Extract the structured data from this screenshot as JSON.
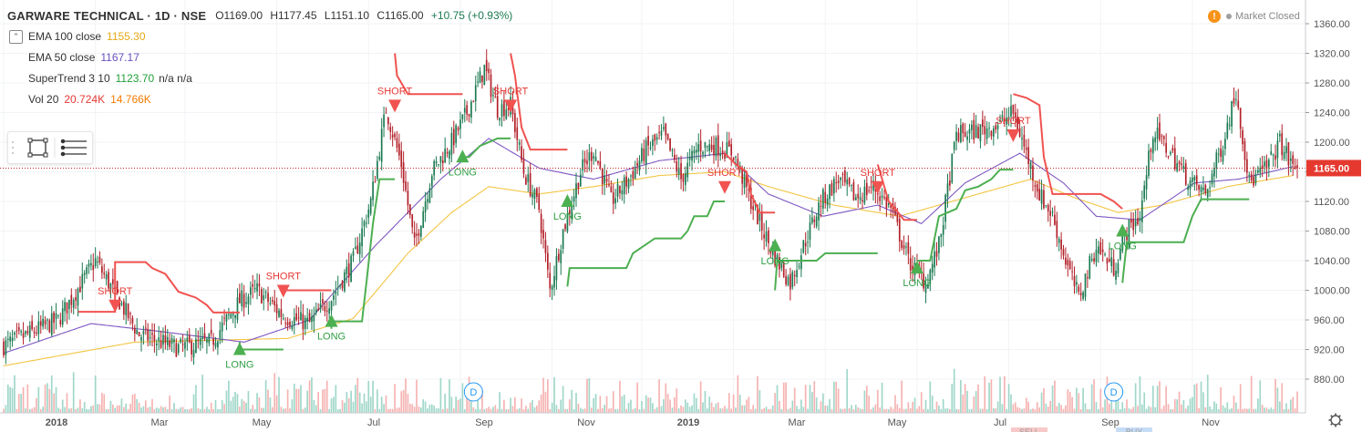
{
  "symbol": "GARWARE TECHNICAL · 1D · NSE",
  "ohlc": {
    "open": "O1169.00",
    "high": "H1177.45",
    "low": "L1151.10",
    "close": "C1165.00",
    "change": "+10.75 (+0.93%)"
  },
  "indicators": [
    {
      "label": "EMA 100 close",
      "value": "1155.30",
      "color": "#e6a817"
    },
    {
      "label": "EMA 50 close",
      "value": "1167.17",
      "color": "#6a4fc0"
    },
    {
      "label": "SuperTrend 3 10",
      "value": "1123.70",
      "extra": "n/a n/a",
      "color": "#21a038"
    },
    {
      "label": "Vol 20",
      "value": "20.724K",
      "value2": "14.766K",
      "color": "#e53935",
      "color2": "#f57c00"
    }
  ],
  "market_status": {
    "icon": "warning-icon",
    "text": "Market Closed"
  },
  "last_price": "1165.00",
  "colors": {
    "up": "#1b7a52",
    "down": "#b32029",
    "st_up": "#4caf50",
    "st_down": "#f05350",
    "ema100": "#f4c542",
    "ema50": "#7e57c2"
  },
  "chart_data": {
    "type": "candlestick",
    "title": "GARWARE TECHNICAL · 1D · NSE",
    "y_axis": {
      "ticks": [
        1360,
        1320,
        1280,
        1240,
        1200,
        1160,
        1120,
        1080,
        1040,
        1000,
        960,
        920,
        880
      ],
      "range": [
        850,
        1370
      ]
    },
    "x_axis_labels": [
      "2018",
      "Mar",
      "May",
      "Jul",
      "Sep",
      "Nov",
      "2019",
      "Mar",
      "May",
      "Jul",
      "Sep",
      "Nov"
    ],
    "anchors": [
      {
        "d": 0,
        "p": 925
      },
      {
        "d": 25,
        "p": 960
      },
      {
        "d": 42,
        "p": 1040
      },
      {
        "d": 52,
        "p": 990
      },
      {
        "d": 62,
        "p": 940
      },
      {
        "d": 80,
        "p": 922
      },
      {
        "d": 95,
        "p": 930
      },
      {
        "d": 108,
        "p": 985
      },
      {
        "d": 116,
        "p": 1000
      },
      {
        "d": 128,
        "p": 965
      },
      {
        "d": 140,
        "p": 955
      },
      {
        "d": 150,
        "p": 990
      },
      {
        "d": 160,
        "p": 1040
      },
      {
        "d": 168,
        "p": 1120
      },
      {
        "d": 175,
        "p": 1245
      },
      {
        "d": 182,
        "p": 1170
      },
      {
        "d": 188,
        "p": 1060
      },
      {
        "d": 196,
        "p": 1160
      },
      {
        "d": 205,
        "p": 1200
      },
      {
        "d": 212,
        "p": 1240
      },
      {
        "d": 220,
        "p": 1300
      },
      {
        "d": 226,
        "p": 1245
      },
      {
        "d": 232,
        "p": 1250
      },
      {
        "d": 238,
        "p": 1160
      },
      {
        "d": 245,
        "p": 1110
      },
      {
        "d": 250,
        "p": 1000
      },
      {
        "d": 256,
        "p": 1080
      },
      {
        "d": 264,
        "p": 1160
      },
      {
        "d": 270,
        "p": 1190
      },
      {
        "d": 278,
        "p": 1120
      },
      {
        "d": 286,
        "p": 1150
      },
      {
        "d": 294,
        "p": 1190
      },
      {
        "d": 302,
        "p": 1210
      },
      {
        "d": 310,
        "p": 1150
      },
      {
        "d": 318,
        "p": 1195
      },
      {
        "d": 326,
        "p": 1195
      },
      {
        "d": 334,
        "p": 1185
      },
      {
        "d": 342,
        "p": 1120
      },
      {
        "d": 352,
        "p": 1050
      },
      {
        "d": 360,
        "p": 1010
      },
      {
        "d": 366,
        "p": 1060
      },
      {
        "d": 374,
        "p": 1120
      },
      {
        "d": 382,
        "p": 1150
      },
      {
        "d": 390,
        "p": 1125
      },
      {
        "d": 398,
        "p": 1140
      },
      {
        "d": 406,
        "p": 1110
      },
      {
        "d": 414,
        "p": 1040
      },
      {
        "d": 422,
        "p": 1010
      },
      {
        "d": 428,
        "p": 1060
      },
      {
        "d": 436,
        "p": 1210
      },
      {
        "d": 446,
        "p": 1215
      },
      {
        "d": 456,
        "p": 1225
      },
      {
        "d": 462,
        "p": 1240
      },
      {
        "d": 468,
        "p": 1185
      },
      {
        "d": 474,
        "p": 1130
      },
      {
        "d": 480,
        "p": 1100
      },
      {
        "d": 486,
        "p": 1040
      },
      {
        "d": 492,
        "p": 990
      },
      {
        "d": 500,
        "p": 1060
      },
      {
        "d": 508,
        "p": 1030
      },
      {
        "d": 514,
        "p": 1080
      },
      {
        "d": 520,
        "p": 1100
      },
      {
        "d": 526,
        "p": 1215
      },
      {
        "d": 534,
        "p": 1185
      },
      {
        "d": 542,
        "p": 1150
      },
      {
        "d": 550,
        "p": 1130
      },
      {
        "d": 558,
        "p": 1200
      },
      {
        "d": 564,
        "p": 1270
      },
      {
        "d": 570,
        "p": 1145
      },
      {
        "d": 578,
        "p": 1165
      },
      {
        "d": 584,
        "p": 1200
      },
      {
        "d": 590,
        "p": 1165
      }
    ],
    "ema100": [
      {
        "d": 0,
        "p": 898
      },
      {
        "d": 60,
        "p": 930
      },
      {
        "d": 130,
        "p": 935
      },
      {
        "d": 160,
        "p": 962
      },
      {
        "d": 185,
        "p": 1050
      },
      {
        "d": 205,
        "p": 1105
      },
      {
        "d": 222,
        "p": 1140
      },
      {
        "d": 245,
        "p": 1130
      },
      {
        "d": 270,
        "p": 1140
      },
      {
        "d": 300,
        "p": 1155
      },
      {
        "d": 330,
        "p": 1160
      },
      {
        "d": 350,
        "p": 1140
      },
      {
        "d": 380,
        "p": 1115
      },
      {
        "d": 410,
        "p": 1100
      },
      {
        "d": 440,
        "p": 1125
      },
      {
        "d": 470,
        "p": 1150
      },
      {
        "d": 490,
        "p": 1125
      },
      {
        "d": 510,
        "p": 1105
      },
      {
        "d": 530,
        "p": 1115
      },
      {
        "d": 560,
        "p": 1140
      },
      {
        "d": 590,
        "p": 1155
      }
    ],
    "ema50": [
      {
        "d": 0,
        "p": 915
      },
      {
        "d": 40,
        "p": 955
      },
      {
        "d": 70,
        "p": 945
      },
      {
        "d": 110,
        "p": 930
      },
      {
        "d": 140,
        "p": 960
      },
      {
        "d": 170,
        "p": 1060
      },
      {
        "d": 200,
        "p": 1150
      },
      {
        "d": 222,
        "p": 1205
      },
      {
        "d": 245,
        "p": 1165
      },
      {
        "d": 270,
        "p": 1150
      },
      {
        "d": 300,
        "p": 1175
      },
      {
        "d": 330,
        "p": 1185
      },
      {
        "d": 350,
        "p": 1130
      },
      {
        "d": 375,
        "p": 1100
      },
      {
        "d": 400,
        "p": 1115
      },
      {
        "d": 420,
        "p": 1090
      },
      {
        "d": 440,
        "p": 1145
      },
      {
        "d": 465,
        "p": 1185
      },
      {
        "d": 485,
        "p": 1145
      },
      {
        "d": 500,
        "p": 1100
      },
      {
        "d": 520,
        "p": 1095
      },
      {
        "d": 545,
        "p": 1145
      },
      {
        "d": 565,
        "p": 1150
      },
      {
        "d": 590,
        "p": 1167
      }
    ],
    "supertrend": [
      {
        "type": "down",
        "points": [
          {
            "d": 34,
            "p": 971
          },
          {
            "d": 51,
            "p": 971
          },
          {
            "d": 51,
            "p": 1038
          },
          {
            "d": 65,
            "p": 1038
          },
          {
            "d": 68,
            "p": 1030
          },
          {
            "d": 74,
            "p": 1022
          },
          {
            "d": 80,
            "p": 998
          },
          {
            "d": 88,
            "p": 990
          },
          {
            "d": 93,
            "p": 980
          },
          {
            "d": 96,
            "p": 970
          },
          {
            "d": 108,
            "p": 970
          }
        ]
      },
      {
        "type": "up",
        "points": [
          {
            "d": 108,
            "p": 930
          },
          {
            "d": 108,
            "p": 920
          },
          {
            "d": 128,
            "p": 920
          }
        ]
      },
      {
        "type": "down",
        "points": [
          {
            "d": 128,
            "p": 1000
          },
          {
            "d": 150,
            "p": 1000
          }
        ]
      },
      {
        "type": "up",
        "points": [
          {
            "d": 150,
            "p": 948
          },
          {
            "d": 150,
            "p": 958
          },
          {
            "d": 164,
            "p": 958
          },
          {
            "d": 166,
            "p": 1010
          },
          {
            "d": 169,
            "p": 1090
          },
          {
            "d": 172,
            "p": 1150
          },
          {
            "d": 179,
            "p": 1150
          }
        ]
      },
      {
        "type": "down",
        "points": [
          {
            "d": 179,
            "p": 1320
          },
          {
            "d": 180,
            "p": 1290
          },
          {
            "d": 185,
            "p": 1265
          },
          {
            "d": 208,
            "p": 1265
          },
          {
            "d": 210,
            "p": 1265
          }
        ]
      },
      {
        "type": "up",
        "points": [
          {
            "d": 210,
            "p": 1180
          },
          {
            "d": 213,
            "p": 1180
          },
          {
            "d": 218,
            "p": 1195
          },
          {
            "d": 226,
            "p": 1205
          },
          {
            "d": 232,
            "p": 1205
          }
        ]
      },
      {
        "type": "down",
        "points": [
          {
            "d": 232,
            "p": 1320
          },
          {
            "d": 234,
            "p": 1290
          },
          {
            "d": 237,
            "p": 1220
          },
          {
            "d": 241,
            "p": 1190
          },
          {
            "d": 258,
            "p": 1190
          }
        ]
      },
      {
        "type": "up",
        "points": [
          {
            "d": 258,
            "p": 1005
          },
          {
            "d": 259,
            "p": 1030
          },
          {
            "d": 285,
            "p": 1030
          },
          {
            "d": 288,
            "p": 1050
          },
          {
            "d": 298,
            "p": 1070
          },
          {
            "d": 310,
            "p": 1070
          },
          {
            "d": 313,
            "p": 1080
          },
          {
            "d": 316,
            "p": 1100
          },
          {
            "d": 322,
            "p": 1100
          },
          {
            "d": 325,
            "p": 1120
          },
          {
            "d": 330,
            "p": 1120
          }
        ]
      },
      {
        "type": "down",
        "points": [
          {
            "d": 330,
            "p": 1185
          },
          {
            "d": 335,
            "p": 1170
          },
          {
            "d": 340,
            "p": 1160
          },
          {
            "d": 342,
            "p": 1130
          },
          {
            "d": 346,
            "p": 1105
          },
          {
            "d": 353,
            "p": 1105
          }
        ]
      },
      {
        "type": "up",
        "points": [
          {
            "d": 353,
            "p": 1000
          },
          {
            "d": 354,
            "p": 1040
          },
          {
            "d": 372,
            "p": 1040
          },
          {
            "d": 376,
            "p": 1050
          },
          {
            "d": 400,
            "p": 1050
          }
        ]
      },
      {
        "type": "down",
        "points": [
          {
            "d": 400,
            "p": 1170
          },
          {
            "d": 402,
            "p": 1150
          },
          {
            "d": 405,
            "p": 1120
          },
          {
            "d": 408,
            "p": 1110
          },
          {
            "d": 412,
            "p": 1095
          },
          {
            "d": 418,
            "p": 1095
          }
        ]
      },
      {
        "type": "up",
        "points": [
          {
            "d": 418,
            "p": 1040
          },
          {
            "d": 424,
            "p": 1040
          },
          {
            "d": 428,
            "p": 1100
          },
          {
            "d": 436,
            "p": 1110
          },
          {
            "d": 440,
            "p": 1135
          },
          {
            "d": 446,
            "p": 1140
          },
          {
            "d": 452,
            "p": 1150
          },
          {
            "d": 456,
            "p": 1163
          },
          {
            "d": 462,
            "p": 1163
          }
        ]
      },
      {
        "type": "down",
        "points": [
          {
            "d": 462,
            "p": 1265
          },
          {
            "d": 468,
            "p": 1260
          },
          {
            "d": 474,
            "p": 1250
          },
          {
            "d": 476,
            "p": 1180
          },
          {
            "d": 480,
            "p": 1130
          },
          {
            "d": 502,
            "p": 1130
          },
          {
            "d": 508,
            "p": 1120
          },
          {
            "d": 512,
            "p": 1110
          }
        ]
      },
      {
        "type": "up",
        "points": [
          {
            "d": 512,
            "p": 1010
          },
          {
            "d": 514,
            "p": 1065
          },
          {
            "d": 540,
            "p": 1065
          },
          {
            "d": 544,
            "p": 1100
          },
          {
            "d": 548,
            "p": 1123
          },
          {
            "d": 570,
            "p": 1123
          }
        ]
      }
    ],
    "signals": [
      {
        "label": "SHORT",
        "d": 51,
        "p": 980
      },
      {
        "label": "LONG",
        "d": 108,
        "p": 920
      },
      {
        "label": "SHORT",
        "d": 128,
        "p": 1000
      },
      {
        "label": "LONG",
        "d": 150,
        "p": 958
      },
      {
        "label": "SHORT",
        "d": 179,
        "p": 1250
      },
      {
        "label": "LONG",
        "d": 210,
        "p": 1180
      },
      {
        "label": "SHORT",
        "d": 232,
        "p": 1250
      },
      {
        "label": "LONG",
        "d": 258,
        "p": 1120
      },
      {
        "label": "SHORT",
        "d": 330,
        "p": 1140
      },
      {
        "label": "LONG",
        "d": 353,
        "p": 1060
      },
      {
        "label": "SHORT",
        "d": 400,
        "p": 1140
      },
      {
        "label": "LONG",
        "d": 418,
        "p": 1030
      },
      {
        "label": "SHORT",
        "d": 462,
        "p": 1210
      },
      {
        "label": "LONG",
        "d": 512,
        "p": 1080
      }
    ],
    "dividend_markers": [
      {
        "d": 215,
        "label": "D"
      },
      {
        "d": 508,
        "label": "D"
      }
    ],
    "bottom_labels": [
      {
        "d": 466,
        "text": "SELL"
      },
      {
        "d": 514,
        "text": "BUY"
      }
    ],
    "last_price": 1165.0
  }
}
